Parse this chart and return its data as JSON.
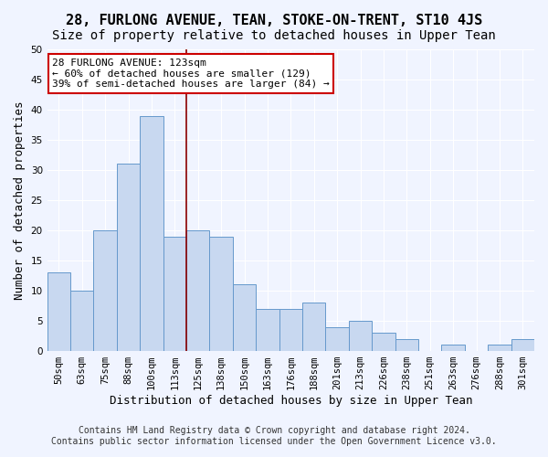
{
  "title": "28, FURLONG AVENUE, TEAN, STOKE-ON-TRENT, ST10 4JS",
  "subtitle": "Size of property relative to detached houses in Upper Tean",
  "xlabel": "Distribution of detached houses by size in Upper Tean",
  "ylabel": "Number of detached properties",
  "bar_values": [
    13,
    10,
    20,
    31,
    39,
    19,
    20,
    19,
    11,
    7,
    7,
    8,
    4,
    5,
    3,
    2,
    0,
    1,
    0,
    1,
    2
  ],
  "bin_labels": [
    "50sqm",
    "63sqm",
    "75sqm",
    "88sqm",
    "100sqm",
    "113sqm",
    "125sqm",
    "138sqm",
    "150sqm",
    "163sqm",
    "176sqm",
    "188sqm",
    "201sqm",
    "213sqm",
    "226sqm",
    "238sqm",
    "251sqm",
    "263sqm",
    "276sqm",
    "288sqm",
    "301sqm"
  ],
  "bar_color": "#c8d8f0",
  "bar_edge_color": "#6699cc",
  "property_size": 123,
  "property_label": "28 FURLONG AVENUE: 123sqm",
  "annotation_line1": "← 60% of detached houses are smaller (129)",
  "annotation_line2": "39% of semi-detached houses are larger (84) →",
  "vline_color": "#8b0000",
  "vline_bin_index": 5.5,
  "annotation_box_color": "#ffffff",
  "annotation_box_edge_color": "#cc0000",
  "footer_line1": "Contains HM Land Registry data © Crown copyright and database right 2024.",
  "footer_line2": "Contains public sector information licensed under the Open Government Licence v3.0.",
  "ylim": [
    0,
    50
  ],
  "yticks": [
    0,
    5,
    10,
    15,
    20,
    25,
    30,
    35,
    40,
    45,
    50
  ],
  "background_color": "#f0f4ff",
  "grid_color": "#ffffff",
  "title_fontsize": 11,
  "subtitle_fontsize": 10,
  "axis_label_fontsize": 9,
  "tick_fontsize": 7.5,
  "footer_fontsize": 7
}
